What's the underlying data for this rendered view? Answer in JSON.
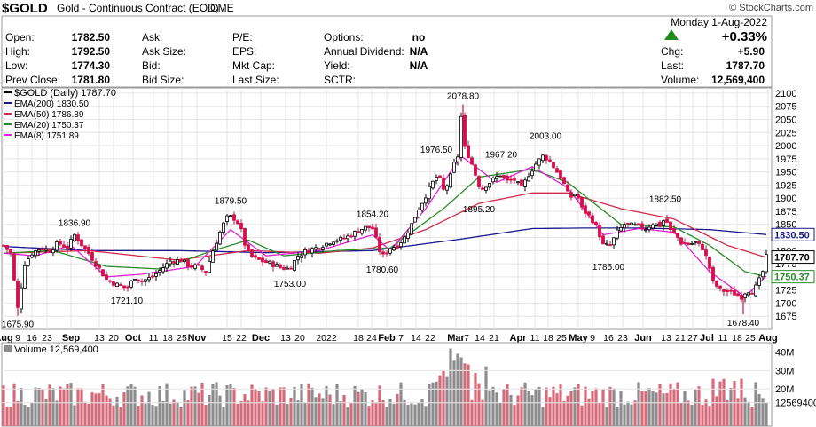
{
  "header": {
    "symbol": "$GOLD",
    "description": "Gold - Continuous Contract (EOD)",
    "exchange": "CME",
    "watermark": "© StockCharts.com",
    "date": "Monday  1-Aug-2022",
    "change_pct": "+0.33%",
    "change_arrow_color": "#1e8c1e",
    "fields": [
      {
        "label": "Open:",
        "value": "1782.50"
      },
      {
        "label": "High:",
        "value": "1792.50"
      },
      {
        "label": "Low:",
        "value": "1774.30"
      },
      {
        "label": "Prev Close:",
        "value": "1781.80"
      },
      {
        "label": "Ask:",
        "value": ""
      },
      {
        "label": "Ask Size:",
        "value": ""
      },
      {
        "label": "Bid:",
        "value": ""
      },
      {
        "label": "Bid Size:",
        "value": ""
      },
      {
        "label": "P/E:",
        "value": ""
      },
      {
        "label": "EPS:",
        "value": ""
      },
      {
        "label": "Mkt Cap:",
        "value": ""
      },
      {
        "label": "Last Size:",
        "value": ""
      },
      {
        "label": "Options:",
        "value": "no"
      },
      {
        "label": "Annual Dividend:",
        "value": "N/A"
      },
      {
        "label": "Yield:",
        "value": "N/A"
      },
      {
        "label": "SCTR:",
        "value": ""
      },
      {
        "label": "Chg:",
        "value": "+5.90"
      },
      {
        "label": "Last:",
        "value": "1787.70"
      },
      {
        "label": "Volume:",
        "value": "12,569,400"
      }
    ]
  },
  "chart_data": {
    "type": "line",
    "subtype": "candlestick with EMA overlays and volume",
    "legend": [
      {
        "text": "$GOLD (Daily) 1787.70",
        "color": "#000000"
      },
      {
        "text": "EMA(200) 1830.50",
        "color": "#1a1a8c"
      },
      {
        "text": "EMA(50) 1786.89",
        "color": "#d12a4a"
      },
      {
        "text": "EMA(20) 1750.37",
        "color": "#2a8c2a"
      },
      {
        "text": "EMA(8) 1751.89",
        "color": "#e020d0"
      }
    ],
    "y_axis": {
      "range": [
        1650,
        2110
      ],
      "ticks": [
        "2100",
        "2075",
        "2050",
        "2025",
        "2000",
        "1975",
        "1950",
        "1925",
        "1900",
        "1875",
        "1850",
        "1825",
        "1800",
        "1775",
        "1750",
        "1725",
        "1700",
        "1675"
      ],
      "side": "right"
    },
    "price_tags": [
      {
        "value": 1830.5,
        "text": "1830.50",
        "color": "#1a1a8c"
      },
      {
        "value": 1787.7,
        "text": "1787.70",
        "color": "#000000"
      },
      {
        "value": 1750.37,
        "text": "1750.37",
        "color": "#2a8c2a"
      }
    ],
    "x_axis": {
      "range": [
        0,
        214
      ],
      "labels": [
        {
          "x": 1,
          "text": "Aug"
        },
        {
          "x": 8,
          "text": "9"
        },
        {
          "x": 13,
          "text": "16"
        },
        {
          "x": 18,
          "text": "23"
        },
        {
          "x": 26,
          "text": "Sep"
        },
        {
          "x": 32,
          "text": "13"
        },
        {
          "x": 37,
          "text": "20"
        },
        {
          "x": 47,
          "text": "Oct"
        },
        {
          "x": 54,
          "text": "11"
        },
        {
          "x": 59,
          "text": "18"
        },
        {
          "x": 64,
          "text": "25"
        },
        {
          "x": 69,
          "text": "Nov"
        },
        {
          "x": 78,
          "text": "15"
        },
        {
          "x": 83,
          "text": "22"
        },
        {
          "x": 90,
          "text": "Dec"
        },
        {
          "x": 99,
          "text": "13"
        },
        {
          "x": 104,
          "text": "20"
        },
        {
          "x": 114,
          "text": "2022"
        },
        {
          "x": 124,
          "text": "18"
        },
        {
          "x": 128,
          "text": "24"
        },
        {
          "x": 134,
          "text": "Feb"
        },
        {
          "x": 139,
          "text": "7"
        },
        {
          "x": 144,
          "text": "14"
        },
        {
          "x": 149,
          "text": "22"
        },
        {
          "x": 158,
          "text": "Mar"
        },
        {
          "x": 164,
          "text": "7"
        },
        {
          "x": 169,
          "text": "14"
        },
        {
          "x": 174,
          "text": "21"
        },
        {
          "x": 189,
          "text": "Apr"
        },
        {
          "x": 195,
          "text": "11"
        },
        {
          "x": 200,
          "text": "18"
        },
        {
          "x": 204,
          "text": "25"
        },
        {
          "x": 209,
          "text": "May"
        }
      ]
    },
    "x_axis_display": [
      {
        "text": "Aug",
        "pos": 4
      },
      {
        "text": "9",
        "pos": 20
      },
      {
        "text": "16",
        "pos": 36
      },
      {
        "text": "23",
        "pos": 53
      },
      {
        "text": "Sep",
        "pos": 80
      },
      {
        "text": "13",
        "pos": 112
      },
      {
        "text": "20",
        "pos": 128
      },
      {
        "text": "Oct",
        "pos": 150
      },
      {
        "text": "11",
        "pos": 173
      },
      {
        "text": "18",
        "pos": 189
      },
      {
        "text": "25",
        "pos": 205
      },
      {
        "text": "Nov",
        "pos": 222
      },
      {
        "text": "15",
        "pos": 256
      },
      {
        "text": "22",
        "pos": 272
      },
      {
        "text": "Dec",
        "pos": 294
      },
      {
        "text": "13",
        "pos": 322
      },
      {
        "text": "20",
        "pos": 338
      },
      {
        "text": "2022",
        "pos": 368
      },
      {
        "text": "18",
        "pos": 404
      },
      {
        "text": "24",
        "pos": 419
      },
      {
        "text": "Feb",
        "pos": 436
      },
      {
        "text": "7",
        "pos": 452
      },
      {
        "text": "14",
        "pos": 469
      },
      {
        "text": "22",
        "pos": 485
      },
      {
        "text": "Mar",
        "pos": 514
      },
      {
        "text": "7",
        "pos": 526
      },
      {
        "text": "14",
        "pos": 541
      },
      {
        "text": "21",
        "pos": 557
      },
      {
        "text": "Apr",
        "pos": 584
      },
      {
        "text": "11",
        "pos": 603
      },
      {
        "text": "18",
        "pos": 618
      },
      {
        "text": "25",
        "pos": 633
      },
      {
        "text": "May",
        "pos": 652
      },
      {
        "text": "9",
        "pos": 668
      },
      {
        "text": "16",
        "pos": 686
      },
      {
        "text": "23",
        "pos": 702
      },
      {
        "text": "Jun",
        "pos": 725
      },
      {
        "text": "13",
        "pos": 751
      },
      {
        "text": "21",
        "pos": 767
      },
      {
        "text": "27",
        "pos": 781
      },
      {
        "text": "Jul",
        "pos": 797
      },
      {
        "text": "11",
        "pos": 815
      },
      {
        "text": "18",
        "pos": 831
      },
      {
        "text": "25",
        "pos": 846
      },
      {
        "text": "Aug",
        "pos": 866
      }
    ],
    "annotations": [
      {
        "text": "1836.90",
        "x": 84,
        "value": 1836.9,
        "pos": "above"
      },
      {
        "text": "1675.90",
        "x": 20,
        "value": 1675.9,
        "pos": "below"
      },
      {
        "text": "1721.10",
        "x": 143,
        "value": 1721.1,
        "pos": "below"
      },
      {
        "text": "1879.50",
        "x": 260,
        "value": 1879.5,
        "pos": "above"
      },
      {
        "text": "1753.00",
        "x": 327,
        "value": 1753.0,
        "pos": "below"
      },
      {
        "text": "1854.20",
        "x": 420,
        "value": 1854.2,
        "pos": "above"
      },
      {
        "text": "1780.60",
        "x": 431,
        "value": 1780.6,
        "pos": "below"
      },
      {
        "text": "1976.50",
        "x": 492,
        "value": 1976.5,
        "pos": "above"
      },
      {
        "text": "2078.80",
        "x": 522,
        "value": 2078.8,
        "pos": "above"
      },
      {
        "text": "1895.20",
        "x": 540,
        "value": 1895.2,
        "pos": "below"
      },
      {
        "text": "1967.20",
        "x": 565,
        "value": 1967.2,
        "pos": "above"
      },
      {
        "text": "2003.00",
        "x": 615,
        "value": 2003.0,
        "pos": "above"
      },
      {
        "text": "1785.00",
        "x": 686,
        "value": 1785.0,
        "pos": "below"
      },
      {
        "text": "1882.50",
        "x": 750,
        "value": 1882.5,
        "pos": "above"
      },
      {
        "text": "1678.40",
        "x": 838,
        "value": 1678.4,
        "pos": "below"
      }
    ],
    "anchors": [
      [
        4,
        1810
      ],
      [
        12,
        1795
      ],
      [
        20,
        1690
      ],
      [
        28,
        1775
      ],
      [
        36,
        1795
      ],
      [
        46,
        1805
      ],
      [
        56,
        1800
      ],
      [
        66,
        1815
      ],
      [
        76,
        1805
      ],
      [
        84,
        1830
      ],
      [
        92,
        1812
      ],
      [
        100,
        1795
      ],
      [
        110,
        1770
      ],
      [
        120,
        1745
      ],
      [
        132,
        1735
      ],
      [
        143,
        1728
      ],
      [
        152,
        1750
      ],
      [
        160,
        1742
      ],
      [
        172,
        1750
      ],
      [
        182,
        1765
      ],
      [
        192,
        1780
      ],
      [
        204,
        1782
      ],
      [
        214,
        1770
      ],
      [
        222,
        1770
      ],
      [
        232,
        1760
      ],
      [
        240,
        1800
      ],
      [
        248,
        1835
      ],
      [
        255,
        1862
      ],
      [
        262,
        1865
      ],
      [
        270,
        1850
      ],
      [
        278,
        1800
      ],
      [
        286,
        1785
      ],
      [
        296,
        1780
      ],
      [
        306,
        1775
      ],
      [
        316,
        1768
      ],
      [
        326,
        1765
      ],
      [
        336,
        1790
      ],
      [
        346,
        1800
      ],
      [
        356,
        1805
      ],
      [
        366,
        1812
      ],
      [
        376,
        1820
      ],
      [
        386,
        1822
      ],
      [
        396,
        1830
      ],
      [
        406,
        1840
      ],
      [
        414,
        1845
      ],
      [
        420,
        1842
      ],
      [
        428,
        1800
      ],
      [
        432,
        1790
      ],
      [
        440,
        1805
      ],
      [
        448,
        1810
      ],
      [
        456,
        1825
      ],
      [
        464,
        1850
      ],
      [
        472,
        1880
      ],
      [
        480,
        1905
      ],
      [
        488,
        1930
      ],
      [
        494,
        1945
      ],
      [
        500,
        1915
      ],
      [
        506,
        1930
      ],
      [
        512,
        1965
      ],
      [
        516,
        1980
      ],
      [
        520,
        2055
      ],
      [
        524,
        1995
      ],
      [
        530,
        1975
      ],
      [
        536,
        1945
      ],
      [
        542,
        1915
      ],
      [
        548,
        1925
      ],
      [
        556,
        1935
      ],
      [
        564,
        1945
      ],
      [
        572,
        1932
      ],
      [
        580,
        1935
      ],
      [
        588,
        1918
      ],
      [
        596,
        1945
      ],
      [
        604,
        1965
      ],
      [
        612,
        1980
      ],
      [
        618,
        1975
      ],
      [
        626,
        1955
      ],
      [
        634,
        1935
      ],
      [
        642,
        1900
      ],
      [
        650,
        1910
      ],
      [
        656,
        1880
      ],
      [
        662,
        1870
      ],
      [
        668,
        1858
      ],
      [
        674,
        1840
      ],
      [
        680,
        1810
      ],
      [
        688,
        1810
      ],
      [
        696,
        1835
      ],
      [
        704,
        1850
      ],
      [
        712,
        1848
      ],
      [
        720,
        1846
      ],
      [
        728,
        1842
      ],
      [
        736,
        1852
      ],
      [
        744,
        1848
      ],
      [
        750,
        1862
      ],
      [
        756,
        1838
      ],
      [
        762,
        1830
      ],
      [
        768,
        1815
      ],
      [
        776,
        1812
      ],
      [
        784,
        1815
      ],
      [
        792,
        1805
      ],
      [
        798,
        1780
      ],
      [
        804,
        1740
      ],
      [
        812,
        1725
      ],
      [
        820,
        1722
      ],
      [
        828,
        1718
      ],
      [
        836,
        1712
      ],
      [
        842,
        1725
      ],
      [
        848,
        1722
      ],
      [
        854,
        1735
      ],
      [
        860,
        1760
      ],
      [
        864,
        1787.7
      ]
    ],
    "ema200_anchors": [
      [
        4,
        1808
      ],
      [
        100,
        1800
      ],
      [
        200,
        1800
      ],
      [
        300,
        1796
      ],
      [
        420,
        1800
      ],
      [
        520,
        1822
      ],
      [
        600,
        1842
      ],
      [
        660,
        1843
      ],
      [
        720,
        1843
      ],
      [
        800,
        1840
      ],
      [
        864,
        1830.5
      ]
    ],
    "ema50_anchors": [
      [
        4,
        1795
      ],
      [
        100,
        1800
      ],
      [
        200,
        1782
      ],
      [
        280,
        1800
      ],
      [
        360,
        1795
      ],
      [
        420,
        1805
      ],
      [
        480,
        1840
      ],
      [
        540,
        1890
      ],
      [
        600,
        1910
      ],
      [
        640,
        1910
      ],
      [
        700,
        1880
      ],
      [
        760,
        1860
      ],
      [
        820,
        1810
      ],
      [
        864,
        1786.89
      ]
    ],
    "ema20_anchors": [
      [
        4,
        1795
      ],
      [
        60,
        1800
      ],
      [
        120,
        1770
      ],
      [
        180,
        1765
      ],
      [
        240,
        1800
      ],
      [
        280,
        1820
      ],
      [
        320,
        1790
      ],
      [
        380,
        1800
      ],
      [
        440,
        1805
      ],
      [
        500,
        1880
      ],
      [
        540,
        1940
      ],
      [
        600,
        1955
      ],
      [
        640,
        1930
      ],
      [
        700,
        1850
      ],
      [
        760,
        1845
      ],
      [
        800,
        1810
      ],
      [
        840,
        1760
      ],
      [
        864,
        1750.37
      ]
    ],
    "ema8_anchors": [
      [
        4,
        1795
      ],
      [
        40,
        1790
      ],
      [
        80,
        1810
      ],
      [
        120,
        1750
      ],
      [
        160,
        1755
      ],
      [
        220,
        1770
      ],
      [
        260,
        1840
      ],
      [
        300,
        1790
      ],
      [
        360,
        1800
      ],
      [
        420,
        1830
      ],
      [
        440,
        1800
      ],
      [
        480,
        1880
      ],
      [
        520,
        1980
      ],
      [
        560,
        1930
      ],
      [
        600,
        1960
      ],
      [
        640,
        1920
      ],
      [
        680,
        1830
      ],
      [
        720,
        1842
      ],
      [
        760,
        1835
      ],
      [
        800,
        1760
      ],
      [
        840,
        1712
      ],
      [
        864,
        1751.89
      ]
    ],
    "volume": {
      "label": "Volume 12,569,400",
      "range": [
        0,
        45000000
      ],
      "ticks": [
        {
          "value": 40000000,
          "text": "40M"
        },
        {
          "value": 30000000,
          "text": "30M"
        },
        {
          "value": 20000000,
          "text": "20M"
        },
        {
          "value": 12569400,
          "text": "12569400"
        }
      ],
      "up_color": "#8c8c8c",
      "down_color": "#d46a7a"
    },
    "colors": {
      "up_candle": "#000000",
      "down_candle": "#d1104a",
      "grid": "#e6e6e6"
    }
  }
}
